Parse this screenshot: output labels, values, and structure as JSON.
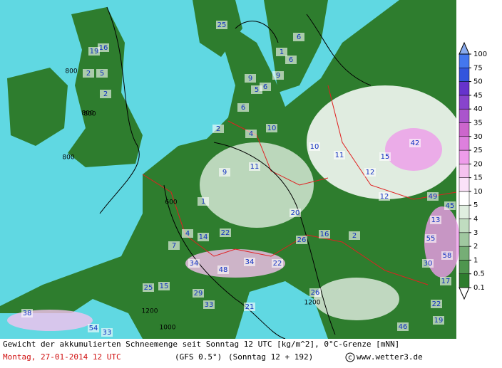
{
  "map": {
    "legend": {
      "levels": [
        0.1,
        0.5,
        1,
        2,
        3,
        4,
        5,
        10,
        15,
        20,
        25,
        30,
        35,
        40,
        45,
        50,
        75,
        100
      ],
      "colors": [
        "#ffffff",
        "#2e7d2e",
        "#4f964f",
        "#76ae76",
        "#a0c8a0",
        "#c0dcc0",
        "#dfeedf",
        "#ffffff",
        "#fbe2f8",
        "#f5c2ef",
        "#ee9cea",
        "#dd80dd",
        "#cc66cc",
        "#aa55cc",
        "#8844cc",
        "#6633cc",
        "#3355dd",
        "#4477ee",
        "#88aaee"
      ]
    },
    "labels": [
      16,
      19,
      2,
      5,
      2,
      800,
      800,
      800,
      25,
      6,
      6,
      9,
      5,
      6,
      6,
      9,
      1,
      2,
      4,
      10,
      10,
      11,
      15,
      42,
      9,
      11,
      12,
      12,
      49,
      45,
      13,
      55,
      58,
      30,
      4,
      14,
      22,
      26,
      20,
      16,
      2,
      7,
      34,
      48,
      34,
      22,
      25,
      15,
      29,
      33,
      21,
      26,
      38,
      54,
      33,
      1,
      1200,
      1000,
      600,
      800,
      1200,
      17,
      22,
      46,
      19
    ],
    "footer": {
      "caption": "Gewicht der akkumulierten Schneemenge seit Sonntag 12 UTC [kg/m^2], 0°C-Grenze [mNN]",
      "date": "Montag, 27-01-2014  12 UTC",
      "model": "(GFS 0.5°)",
      "run": "(Sonntag 12 + 192)",
      "source": "www.wetter3.de"
    }
  }
}
